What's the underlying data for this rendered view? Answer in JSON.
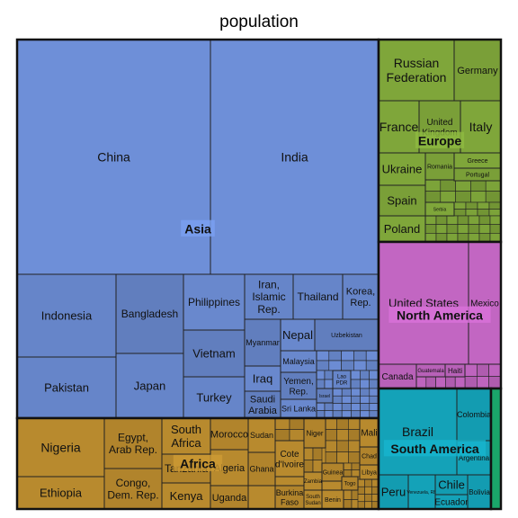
{
  "chart_data": {
    "type": "treemap",
    "title": "population",
    "groups": [
      {
        "name": "Asia",
        "color": "#6e8fd8",
        "items": [
          {
            "label": "China"
          },
          {
            "label": "India"
          },
          {
            "label": "Indonesia"
          },
          {
            "label": "Pakistan"
          },
          {
            "label": "Bangladesh"
          },
          {
            "label": "Japan"
          },
          {
            "label": "Philippines"
          },
          {
            "label": "Vietnam"
          },
          {
            "label": "Turkey"
          },
          {
            "label": "Iran, Islamic Rep."
          },
          {
            "label": "Thailand"
          },
          {
            "label": "Korea, Rep."
          },
          {
            "label": "Myanmar"
          },
          {
            "label": "Nepal"
          },
          {
            "label": "Uzbekistan"
          },
          {
            "label": "Iraq"
          },
          {
            "label": "Malaysia"
          },
          {
            "label": "Saudi Arabia"
          },
          {
            "label": "Yemen, Rep."
          },
          {
            "label": "Sri Lanka"
          },
          {
            "label": "Lao PDR"
          },
          {
            "label": "Israel"
          }
        ]
      },
      {
        "name": "Africa",
        "color": "#b88a2e",
        "items": [
          {
            "label": "Nigeria"
          },
          {
            "label": "Ethiopia"
          },
          {
            "label": "Egypt, Arab Rep."
          },
          {
            "label": "Congo, Dem. Rep."
          },
          {
            "label": "South Africa"
          },
          {
            "label": "Tanzania"
          },
          {
            "label": "Kenya"
          },
          {
            "label": "Morocco"
          },
          {
            "label": "Algeria"
          },
          {
            "label": "Uganda"
          },
          {
            "label": "Sudan"
          },
          {
            "label": "Ghana"
          },
          {
            "label": "Cote d'Ivoire"
          },
          {
            "label": "Niger"
          },
          {
            "label": "Mali"
          },
          {
            "label": "Chad"
          },
          {
            "label": "Libya"
          },
          {
            "label": "Zambia"
          },
          {
            "label": "Guinea"
          },
          {
            "label": "Togo"
          },
          {
            "label": "Burkina Faso"
          },
          {
            "label": "South Sudan"
          },
          {
            "label": "Benin"
          }
        ]
      },
      {
        "name": "Europe",
        "color": "#7fa63a",
        "items": [
          {
            "label": "Russian Federation"
          },
          {
            "label": "Germany"
          },
          {
            "label": "France"
          },
          {
            "label": "United Kingdom"
          },
          {
            "label": "Italy"
          },
          {
            "label": "Ukraine"
          },
          {
            "label": "Romania"
          },
          {
            "label": "Greece"
          },
          {
            "label": "Portugal"
          },
          {
            "label": "Spain"
          },
          {
            "label": "Serbia"
          },
          {
            "label": "Poland"
          }
        ]
      },
      {
        "name": "North America",
        "color": "#c266c2",
        "items": [
          {
            "label": "United States"
          },
          {
            "label": "Mexico"
          },
          {
            "label": "Canada"
          },
          {
            "label": "Guatemala"
          },
          {
            "label": "Haiti"
          }
        ]
      },
      {
        "name": "South America",
        "color": "#14a2b8",
        "items": [
          {
            "label": "Brazil"
          },
          {
            "label": "Colombia"
          },
          {
            "label": "Argentina"
          },
          {
            "label": "Peru"
          },
          {
            "label": "Venezuela, RB"
          },
          {
            "label": "Chile"
          },
          {
            "label": "Ecuador"
          },
          {
            "label": "Bolivia"
          }
        ]
      },
      {
        "name": "",
        "color": "#1aa66a",
        "items": []
      }
    ]
  }
}
